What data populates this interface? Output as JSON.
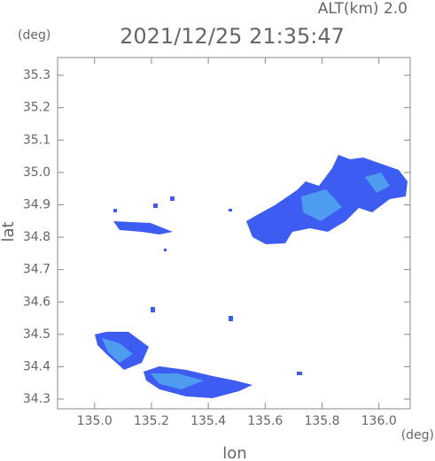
{
  "chart_data": {
    "type": "radar-map",
    "title": "2021/12/25 21:35:47",
    "altitude_label": "ALT(km) 2.0",
    "y_unit": "(deg)",
    "x_unit": "(deg)",
    "xlabel": "lon",
    "ylabel": "lat",
    "xlim": [
      134.87,
      136.11
    ],
    "ylim": [
      34.27,
      35.355
    ],
    "xticks": [
      {
        "value": 135,
        "label": "135.0"
      },
      135.2,
      135.4,
      135.6,
      135.8,
      {
        "value": 136,
        "label": "136.0"
      }
    ],
    "yticks": [
      34.3,
      34.4,
      34.5,
      34.6,
      34.7,
      34.8,
      34.9,
      {
        "value": 35,
        "label": "35.0"
      },
      35.1,
      35.2,
      35.3
    ],
    "color": "#3d5cf2"
  }
}
